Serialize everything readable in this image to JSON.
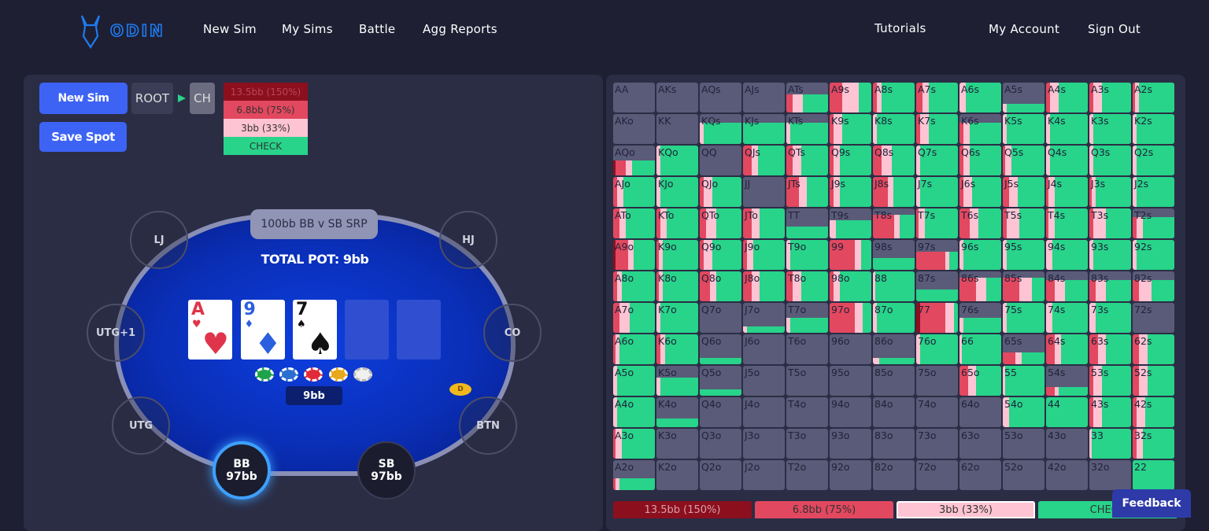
{
  "nav": {
    "brand": "ODIN",
    "left": [
      "New Sim",
      "My Sims",
      "Battle",
      "Agg Reports"
    ],
    "right": [
      "Tutorials",
      "My Account",
      "Sign Out"
    ]
  },
  "buttons": {
    "new_sim": "New Sim",
    "save_spot": "Save Spot"
  },
  "path": [
    "ROOT",
    "CH"
  ],
  "actions": [
    {
      "label": "13.5bb (150%)",
      "color": "#8c0f1e"
    },
    {
      "label": "6.8bb (75%)",
      "color": "#e2485f"
    },
    {
      "label": "3bb (33%)",
      "color": "#ffc4d3"
    },
    {
      "label": "CHECK",
      "color": "#27d48a"
    }
  ],
  "table": {
    "spot": "100bb BB v SB SRP",
    "pot": "TOTAL POT: 9bb",
    "pot_chips": "9bb",
    "dealer": "D",
    "cards": [
      {
        "rank": "A",
        "suit": "♥",
        "color": "#e0344a"
      },
      {
        "rank": "9",
        "suit": "♦",
        "color": "#2a5fe0"
      },
      {
        "rank": "7",
        "suit": "♠",
        "color": "#111111"
      }
    ],
    "seats": [
      {
        "name": "LJ"
      },
      {
        "name": "HJ"
      },
      {
        "name": "UTG+1"
      },
      {
        "name": "CO"
      },
      {
        "name": "UTG"
      },
      {
        "name": "BTN"
      },
      {
        "name": "BB",
        "stack": "97bb"
      },
      {
        "name": "SB",
        "stack": "97bb"
      }
    ]
  },
  "grid": {
    "hands": [
      [
        "AA",
        "AKs",
        "AQs",
        "AJs",
        "ATs",
        "A9s",
        "A8s",
        "A7s",
        "A6s",
        "A5s",
        "A4s",
        "A3s",
        "A2s"
      ],
      [
        "AKo",
        "KK",
        "KQs",
        "KJs",
        "KTs",
        "K9s",
        "K8s",
        "K7s",
        "K6s",
        "K5s",
        "K4s",
        "K3s",
        "K2s"
      ],
      [
        "AQo",
        "KQo",
        "QQ",
        "QJs",
        "QTs",
        "Q9s",
        "Q8s",
        "Q7s",
        "Q6s",
        "Q5s",
        "Q4s",
        "Q3s",
        "Q2s"
      ],
      [
        "AJo",
        "KJo",
        "QJo",
        "JJ",
        "JTs",
        "J9s",
        "J8s",
        "J7s",
        "J6s",
        "J5s",
        "J4s",
        "J3s",
        "J2s"
      ],
      [
        "ATo",
        "KTo",
        "QTo",
        "JTo",
        "TT",
        "T9s",
        "T8s",
        "T7s",
        "T6s",
        "T5s",
        "T4s",
        "T3s",
        "T2s"
      ],
      [
        "A9o",
        "K9o",
        "Q9o",
        "J9o",
        "T9o",
        "99",
        "98s",
        "97s",
        "96s",
        "95s",
        "94s",
        "93s",
        "92s"
      ],
      [
        "A8o",
        "K8o",
        "Q8o",
        "J8o",
        "T8o",
        "98o",
        "88",
        "87s",
        "86s",
        "85s",
        "84s",
        "83s",
        "82s"
      ],
      [
        "A7o",
        "K7o",
        "Q7o",
        "J7o",
        "T7o",
        "97o",
        "87o",
        "77",
        "76s",
        "75s",
        "74s",
        "73s",
        "72s"
      ],
      [
        "A6o",
        "K6o",
        "Q6o",
        "J6o",
        "T6o",
        "96o",
        "86o",
        "76o",
        "66",
        "65s",
        "64s",
        "63s",
        "62s"
      ],
      [
        "A5o",
        "K5o",
        "Q5o",
        "J5o",
        "T5o",
        "95o",
        "85o",
        "75o",
        "65o",
        "55",
        "54s",
        "53s",
        "52s"
      ],
      [
        "A4o",
        "K4o",
        "Q4o",
        "J4o",
        "T4o",
        "94o",
        "84o",
        "74o",
        "64o",
        "54o",
        "44",
        "43s",
        "42s"
      ],
      [
        "A3o",
        "K3o",
        "Q3o",
        "J3o",
        "T3o",
        "93o",
        "83o",
        "73o",
        "63o",
        "53o",
        "43o",
        "33",
        "32s"
      ],
      [
        "A2o",
        "K2o",
        "Q2o",
        "J2o",
        "T2o",
        "92o",
        "82o",
        "72o",
        "62o",
        "52o",
        "42o",
        "32o",
        "22"
      ]
    ],
    "cells": [
      [
        [
          0,
          0,
          0,
          0,
          0
        ],
        [
          0,
          0,
          0,
          0,
          0
        ],
        [
          0,
          0,
          0,
          0,
          0
        ],
        [
          0,
          0,
          0,
          0,
          0
        ],
        [
          60,
          0,
          15,
          25,
          60
        ],
        [
          100,
          0,
          30,
          40,
          30
        ],
        [
          100,
          0,
          10,
          10,
          80
        ],
        [
          100,
          0,
          15,
          15,
          70
        ],
        [
          100,
          0,
          0,
          15,
          85
        ],
        [
          30,
          0,
          0,
          10,
          90
        ],
        [
          100,
          0,
          10,
          20,
          70
        ],
        [
          100,
          0,
          10,
          20,
          70
        ],
        [
          100,
          0,
          5,
          10,
          85
        ]
      ],
      [
        [
          0,
          0,
          0,
          0,
          0
        ],
        [
          0,
          0,
          0,
          0,
          0
        ],
        [
          70,
          0,
          0,
          10,
          90
        ],
        [
          70,
          0,
          0,
          0,
          100
        ],
        [
          70,
          0,
          0,
          10,
          90
        ],
        [
          100,
          0,
          10,
          20,
          70
        ],
        [
          100,
          0,
          0,
          10,
          90
        ],
        [
          100,
          0,
          10,
          20,
          70
        ],
        [
          70,
          0,
          10,
          15,
          75
        ],
        [
          100,
          0,
          0,
          10,
          90
        ],
        [
          100,
          0,
          0,
          10,
          90
        ],
        [
          100,
          0,
          0,
          10,
          90
        ],
        [
          100,
          0,
          0,
          10,
          90
        ]
      ],
      [
        [
          50,
          5,
          25,
          15,
          55
        ],
        [
          100,
          0,
          0,
          10,
          90
        ],
        [
          0,
          0,
          0,
          0,
          0
        ],
        [
          100,
          0,
          20,
          15,
          65
        ],
        [
          100,
          0,
          15,
          20,
          65
        ],
        [
          100,
          0,
          10,
          15,
          75
        ],
        [
          100,
          0,
          20,
          25,
          55
        ],
        [
          100,
          0,
          0,
          10,
          90
        ],
        [
          100,
          0,
          10,
          15,
          75
        ],
        [
          100,
          0,
          5,
          15,
          80
        ],
        [
          100,
          0,
          0,
          10,
          90
        ],
        [
          100,
          0,
          0,
          10,
          90
        ],
        [
          100,
          0,
          0,
          10,
          90
        ]
      ],
      [
        [
          100,
          0,
          10,
          15,
          75
        ],
        [
          100,
          0,
          0,
          10,
          90
        ],
        [
          100,
          0,
          10,
          20,
          70
        ],
        [
          0,
          0,
          0,
          0,
          0
        ],
        [
          100,
          0,
          30,
          20,
          50
        ],
        [
          100,
          0,
          10,
          15,
          75
        ],
        [
          100,
          0,
          35,
          15,
          50
        ],
        [
          100,
          0,
          0,
          10,
          90
        ],
        [
          100,
          0,
          10,
          20,
          70
        ],
        [
          100,
          0,
          15,
          20,
          65
        ],
        [
          100,
          0,
          5,
          15,
          80
        ],
        [
          100,
          0,
          5,
          10,
          85
        ],
        [
          100,
          0,
          0,
          10,
          90
        ]
      ],
      [
        [
          100,
          0,
          15,
          15,
          70
        ],
        [
          100,
          0,
          10,
          15,
          75
        ],
        [
          100,
          0,
          15,
          25,
          60
        ],
        [
          100,
          0,
          20,
          20,
          60
        ],
        [
          40,
          0,
          0,
          0,
          100
        ],
        [
          60,
          0,
          0,
          15,
          85
        ],
        [
          80,
          0,
          50,
          15,
          35
        ],
        [
          100,
          0,
          5,
          15,
          80
        ],
        [
          100,
          0,
          25,
          20,
          55
        ],
        [
          100,
          0,
          10,
          30,
          60
        ],
        [
          100,
          0,
          5,
          15,
          80
        ],
        [
          100,
          0,
          10,
          30,
          60
        ],
        [
          70,
          0,
          10,
          15,
          75
        ]
      ],
      [
        [
          100,
          5,
          30,
          15,
          50
        ],
        [
          100,
          0,
          5,
          10,
          85
        ],
        [
          100,
          0,
          10,
          20,
          70
        ],
        [
          100,
          0,
          10,
          15,
          75
        ],
        [
          100,
          0,
          0,
          10,
          90
        ],
        [
          100,
          0,
          60,
          15,
          25
        ],
        [
          40,
          0,
          0,
          0,
          100
        ],
        [
          60,
          0,
          70,
          10,
          20
        ],
        [
          100,
          0,
          0,
          10,
          90
        ],
        [
          100,
          0,
          0,
          10,
          90
        ],
        [
          100,
          0,
          0,
          15,
          85
        ],
        [
          100,
          0,
          0,
          10,
          90
        ],
        [
          100,
          0,
          0,
          10,
          90
        ]
      ],
      [
        [
          100,
          0,
          10,
          10,
          80
        ],
        [
          100,
          0,
          5,
          10,
          85
        ],
        [
          100,
          0,
          25,
          15,
          60
        ],
        [
          100,
          0,
          20,
          20,
          60
        ],
        [
          100,
          0,
          15,
          20,
          65
        ],
        [
          100,
          0,
          10,
          15,
          75
        ],
        [
          100,
          0,
          0,
          5,
          95
        ],
        [
          40,
          0,
          0,
          0,
          100
        ],
        [
          80,
          0,
          40,
          25,
          35
        ],
        [
          80,
          0,
          40,
          30,
          30
        ],
        [
          70,
          0,
          20,
          25,
          55
        ],
        [
          70,
          0,
          15,
          25,
          60
        ],
        [
          70,
          0,
          15,
          30,
          55
        ]
      ],
      [
        [
          100,
          0,
          15,
          25,
          60
        ],
        [
          100,
          0,
          0,
          10,
          90
        ],
        [
          0,
          0,
          0,
          0,
          0
        ],
        [
          20,
          0,
          0,
          10,
          90
        ],
        [
          50,
          0,
          0,
          10,
          90
        ],
        [
          100,
          0,
          60,
          20,
          20
        ],
        [
          100,
          0,
          0,
          10,
          90
        ],
        [
          100,
          10,
          60,
          20,
          10
        ],
        [
          50,
          0,
          0,
          10,
          90
        ],
        [
          100,
          0,
          0,
          10,
          90
        ],
        [
          100,
          0,
          0,
          15,
          85
        ],
        [
          100,
          0,
          0,
          15,
          85
        ],
        [
          0,
          0,
          0,
          0,
          0
        ]
      ],
      [
        [
          100,
          0,
          5,
          10,
          85
        ],
        [
          100,
          0,
          10,
          10,
          80
        ],
        [
          20,
          0,
          0,
          0,
          100
        ],
        [
          0,
          0,
          0,
          0,
          0
        ],
        [
          0,
          0,
          0,
          0,
          0
        ],
        [
          0,
          0,
          0,
          0,
          0
        ],
        [
          20,
          0,
          0,
          15,
          85
        ],
        [
          100,
          0,
          0,
          10,
          90
        ],
        [
          100,
          0,
          0,
          5,
          95
        ],
        [
          40,
          0,
          30,
          15,
          55
        ],
        [
          100,
          0,
          20,
          15,
          65
        ],
        [
          100,
          0,
          20,
          20,
          60
        ],
        [
          100,
          0,
          15,
          20,
          65
        ]
      ],
      [
        [
          100,
          0,
          0,
          10,
          90
        ],
        [
          60,
          0,
          0,
          10,
          90
        ],
        [
          20,
          0,
          0,
          0,
          100
        ],
        [
          0,
          0,
          0,
          0,
          0
        ],
        [
          0,
          0,
          0,
          0,
          0
        ],
        [
          0,
          0,
          0,
          0,
          0
        ],
        [
          0,
          0,
          0,
          0,
          0
        ],
        [
          0,
          0,
          0,
          0,
          0
        ],
        [
          100,
          0,
          20,
          20,
          60
        ],
        [
          100,
          0,
          0,
          5,
          95
        ],
        [
          30,
          0,
          20,
          10,
          70
        ],
        [
          100,
          0,
          10,
          20,
          70
        ],
        [
          100,
          0,
          15,
          20,
          65
        ]
      ],
      [
        [
          100,
          0,
          0,
          10,
          90
        ],
        [
          30,
          0,
          0,
          0,
          100
        ],
        [
          0,
          0,
          0,
          0,
          0
        ],
        [
          0,
          0,
          0,
          0,
          0
        ],
        [
          0,
          0,
          0,
          0,
          0
        ],
        [
          0,
          0,
          0,
          0,
          0
        ],
        [
          0,
          0,
          0,
          0,
          0
        ],
        [
          0,
          0,
          0,
          0,
          0
        ],
        [
          0,
          0,
          0,
          0,
          0
        ],
        [
          100,
          0,
          0,
          15,
          85
        ],
        [
          100,
          0,
          0,
          0,
          100
        ],
        [
          100,
          0,
          10,
          20,
          70
        ],
        [
          100,
          0,
          10,
          20,
          70
        ]
      ],
      [
        [
          100,
          0,
          5,
          15,
          80
        ],
        [
          0,
          0,
          0,
          0,
          0
        ],
        [
          0,
          0,
          0,
          0,
          0
        ],
        [
          0,
          0,
          0,
          0,
          0
        ],
        [
          0,
          0,
          0,
          0,
          0
        ],
        [
          0,
          0,
          0,
          0,
          0
        ],
        [
          0,
          0,
          0,
          0,
          0
        ],
        [
          0,
          0,
          0,
          0,
          0
        ],
        [
          0,
          0,
          0,
          0,
          0
        ],
        [
          0,
          0,
          0,
          0,
          0
        ],
        [
          0,
          0,
          0,
          0,
          0
        ],
        [
          100,
          0,
          0,
          5,
          95
        ],
        [
          100,
          0,
          10,
          15,
          75
        ]
      ],
      [
        [
          40,
          0,
          5,
          10,
          85
        ],
        [
          0,
          0,
          0,
          0,
          0
        ],
        [
          0,
          0,
          0,
          0,
          0
        ],
        [
          0,
          0,
          0,
          0,
          0
        ],
        [
          0,
          0,
          0,
          0,
          0
        ],
        [
          0,
          0,
          0,
          0,
          0
        ],
        [
          0,
          0,
          0,
          0,
          0
        ],
        [
          0,
          0,
          0,
          0,
          0
        ],
        [
          0,
          0,
          0,
          0,
          0
        ],
        [
          0,
          0,
          0,
          0,
          0
        ],
        [
          0,
          0,
          0,
          0,
          0
        ],
        [
          0,
          0,
          0,
          0,
          0
        ],
        [
          100,
          0,
          0,
          0,
          100
        ]
      ]
    ]
  },
  "feedback": "Feedback"
}
